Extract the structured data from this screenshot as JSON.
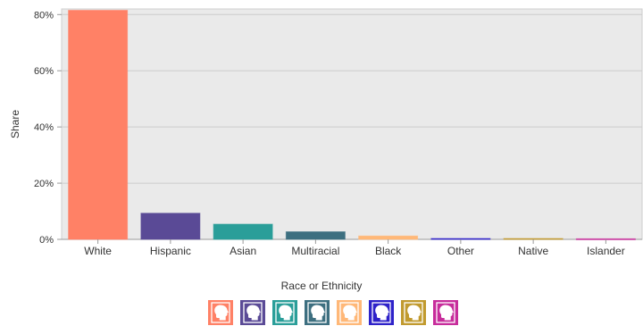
{
  "chart_data": {
    "type": "bar",
    "xlabel": "Race or Ethnicity",
    "ylabel": "Share",
    "ylim": [
      0,
      0.82
    ],
    "yticks": [
      0,
      0.2,
      0.4,
      0.6,
      0.8
    ],
    "ytick_labels": [
      "0%",
      "20%",
      "40%",
      "60%",
      "80%"
    ],
    "grid": true,
    "categories": [
      "White",
      "Hispanic",
      "Asian",
      "Multiracial",
      "Black",
      "Other",
      "Native",
      "Islander"
    ],
    "values": [
      0.815,
      0.093,
      0.054,
      0.027,
      0.012,
      0.003,
      0.003,
      0.002
    ],
    "colors": [
      "#FF8166",
      "#5A4A96",
      "#2A9E99",
      "#3D6F80",
      "#FFB878",
      "#2E22C9",
      "#C19A2E",
      "#C72C9B"
    ],
    "legend": {
      "title": "Race or Ethnicity",
      "placement": "bottom-center",
      "icon": "person-head-icon"
    }
  }
}
